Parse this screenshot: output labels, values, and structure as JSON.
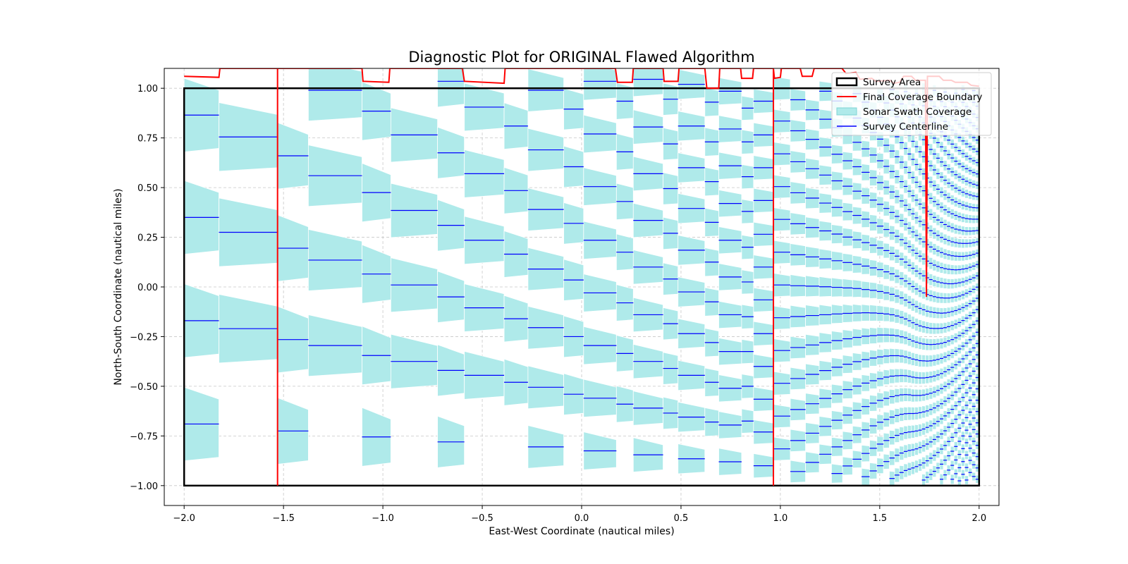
{
  "chart_data": {
    "type": "line",
    "title": "Diagnostic Plot for ORIGINAL Flawed Algorithm",
    "xlabel": "East-West Coordinate (nautical miles)",
    "ylabel": "North-South Coordinate (nautical miles)",
    "xlim": [
      -2.1,
      2.1
    ],
    "ylim": [
      -1.1,
      1.1
    ],
    "xticks": [
      -2.0,
      -1.5,
      -1.0,
      -0.5,
      0.0,
      0.5,
      1.0,
      1.5,
      2.0
    ],
    "xtick_labels": [
      "−2.0",
      "−1.5",
      "−1.0",
      "−0.5",
      "0.0",
      "0.5",
      "1.0",
      "1.5",
      "2.0"
    ],
    "yticks": [
      -1.0,
      -0.75,
      -0.5,
      -0.25,
      0.0,
      0.25,
      0.5,
      0.75,
      1.0
    ],
    "ytick_labels": [
      "−1.00",
      "−0.75",
      "−0.50",
      "−0.25",
      "0.00",
      "0.25",
      "0.50",
      "0.75",
      "1.00"
    ],
    "grid": true,
    "legend_position": "upper-right",
    "survey_area": {
      "x": [
        -2.0,
        2.0
      ],
      "y": [
        -1.0,
        1.0
      ]
    },
    "columns": [
      {
        "x0": -2.0,
        "x1": -1.825,
        "centerlines": [
          0.865,
          0.35,
          -0.17,
          -0.69
        ]
      },
      {
        "x0": -1.825,
        "x1": -1.53,
        "centerlines": [
          0.755,
          0.275,
          -0.21
        ]
      },
      {
        "x0": -1.53,
        "x1": -1.375,
        "centerlines": [
          0.66,
          0.195,
          -0.265,
          -0.725
        ]
      },
      {
        "x0": -1.375,
        "x1": -1.105,
        "centerlines": [
          0.99,
          0.56,
          0.135,
          -0.295
        ]
      },
      {
        "x0": -1.105,
        "x1": -0.96,
        "centerlines": [
          0.885,
          0.475,
          0.065,
          -0.345,
          -0.755
        ]
      },
      {
        "x0": -0.96,
        "x1": -0.725,
        "centerlines": [
          0.765,
          0.385,
          0.01,
          -0.375
        ]
      },
      {
        "x0": -0.725,
        "x1": -0.59,
        "centerlines": [
          1.035,
          0.675,
          0.31,
          -0.05,
          -0.42,
          -0.78
        ]
      },
      {
        "x0": -0.59,
        "x1": -0.39,
        "centerlines": [
          0.905,
          0.57,
          0.235,
          -0.105,
          -0.445
        ]
      },
      {
        "x0": -0.39,
        "x1": -0.27,
        "centerlines": [
          0.81,
          0.485,
          0.165,
          -0.16,
          -0.48
        ]
      },
      {
        "x0": -0.27,
        "x1": -0.09,
        "centerlines": [
          0.99,
          0.69,
          0.39,
          0.09,
          -0.205,
          -0.505,
          -0.805
        ]
      },
      {
        "x0": -0.09,
        "x1": 0.01,
        "centerlines": [
          0.895,
          0.605,
          0.32,
          0.035,
          -0.25,
          -0.54
        ]
      },
      {
        "x0": 0.01,
        "x1": 0.175,
        "centerlines": [
          1.035,
          0.77,
          0.505,
          0.235,
          -0.03,
          -0.295,
          -0.56,
          -0.825
        ]
      },
      {
        "x0": 0.175,
        "x1": 0.26,
        "centerlines": [
          0.935,
          0.68,
          0.43,
          0.175,
          -0.08,
          -0.335,
          -0.59
        ]
      },
      {
        "x0": 0.26,
        "x1": 0.41,
        "centerlines": [
          1.045,
          0.805,
          0.57,
          0.335,
          0.1,
          -0.14,
          -0.375,
          -0.61,
          -0.845
        ]
      },
      {
        "x0": 0.41,
        "x1": 0.485,
        "centerlines": [
          0.945,
          0.72,
          0.495,
          0.27,
          0.04,
          -0.185,
          -0.41,
          -0.635
        ]
      },
      {
        "x0": 0.485,
        "x1": 0.62,
        "centerlines": [
          1.02,
          0.81,
          0.6,
          0.395,
          0.185,
          -0.025,
          -0.235,
          -0.445,
          -0.655,
          -0.865
        ]
      },
      {
        "x0": 0.62,
        "x1": 0.69,
        "centerlines": [
          0.93,
          0.73,
          0.53,
          0.325,
          0.125,
          -0.075,
          -0.28,
          -0.48,
          -0.68
        ]
      },
      {
        "x0": 0.69,
        "x1": 0.805,
        "centerlines": [
          0.985,
          0.795,
          0.61,
          0.42,
          0.235,
          0.05,
          -0.14,
          -0.325,
          -0.51,
          -0.695,
          -0.88
        ]
      },
      {
        "x0": 0.805,
        "x1": 0.865,
        "centerlines": [
          0.9,
          0.73,
          0.555,
          0.38,
          0.2,
          0.025,
          -0.15,
          -0.325,
          -0.5,
          -0.675
        ]
      },
      {
        "x0": 0.865,
        "x1": 0.965,
        "centerlines": [
          0.935,
          0.765,
          0.6,
          0.435,
          0.265,
          0.1,
          -0.065,
          -0.235,
          -0.4,
          -0.565,
          -0.73,
          -0.9
        ]
      }
    ],
    "dense_columns_from_x": 0.965,
    "coverage_boundary": [
      [
        -2.0,
        1.06
      ],
      [
        -1.825,
        1.055
      ],
      [
        -1.82,
        1.1
      ],
      [
        -1.53,
        1.1
      ],
      [
        -1.53,
        -1.0
      ],
      [
        -1.53,
        1.1
      ],
      [
        -1.105,
        1.1
      ],
      [
        -1.1,
        1.035
      ],
      [
        -0.97,
        1.03
      ],
      [
        -0.965,
        1.1
      ],
      [
        -0.6,
        1.1
      ],
      [
        -0.59,
        1.035
      ],
      [
        -0.39,
        1.025
      ],
      [
        -0.385,
        1.1
      ],
      [
        0.17,
        1.1
      ],
      [
        0.18,
        1.03
      ],
      [
        0.255,
        1.03
      ],
      [
        0.26,
        1.1
      ],
      [
        0.41,
        1.1
      ],
      [
        0.415,
        1.035
      ],
      [
        0.485,
        1.035
      ],
      [
        0.49,
        1.1
      ],
      [
        0.62,
        1.1
      ],
      [
        0.63,
        1.0
      ],
      [
        0.69,
        1.0
      ],
      [
        0.695,
        1.1
      ],
      [
        0.8,
        1.1
      ],
      [
        0.805,
        1.05
      ],
      [
        0.86,
        1.05
      ],
      [
        0.865,
        1.1
      ],
      [
        0.965,
        1.1
      ],
      [
        0.965,
        -1.0
      ],
      [
        0.965,
        1.1
      ],
      [
        0.97,
        1.05
      ],
      [
        1.0,
        1.055
      ],
      [
        1.005,
        1.1
      ],
      [
        1.1,
        1.1
      ],
      [
        1.11,
        1.06
      ],
      [
        1.16,
        1.06
      ],
      [
        1.17,
        1.1
      ],
      [
        1.31,
        1.1
      ],
      [
        1.33,
        1.075
      ],
      [
        1.38,
        1.08
      ],
      [
        1.4,
        1.045
      ],
      [
        1.46,
        1.05
      ],
      [
        1.48,
        1.035
      ],
      [
        1.55,
        1.04
      ],
      [
        1.57,
        1.025
      ],
      [
        1.6,
        1.03
      ],
      [
        1.62,
        1.06
      ],
      [
        1.66,
        1.06
      ],
      [
        1.68,
        1.04
      ],
      [
        1.73,
        1.04
      ],
      [
        1.735,
        -0.05
      ],
      [
        1.74,
        1.06
      ],
      [
        1.8,
        1.06
      ],
      [
        1.82,
        1.04
      ],
      [
        1.86,
        1.04
      ],
      [
        1.88,
        1.03
      ],
      [
        1.94,
        1.03
      ],
      [
        1.96,
        1.015
      ],
      [
        2.0,
        1.01
      ]
    ],
    "legend": [
      "Survey Area",
      "Final Coverage Boundary",
      "Sonar Swath Coverage",
      "Survey Centerline"
    ],
    "colors": {
      "swath": "#afeaea",
      "centerline": "#0000ff",
      "boundary": "#ff0000",
      "survey_area": "#000000",
      "grid": "#b0b0b0"
    }
  }
}
